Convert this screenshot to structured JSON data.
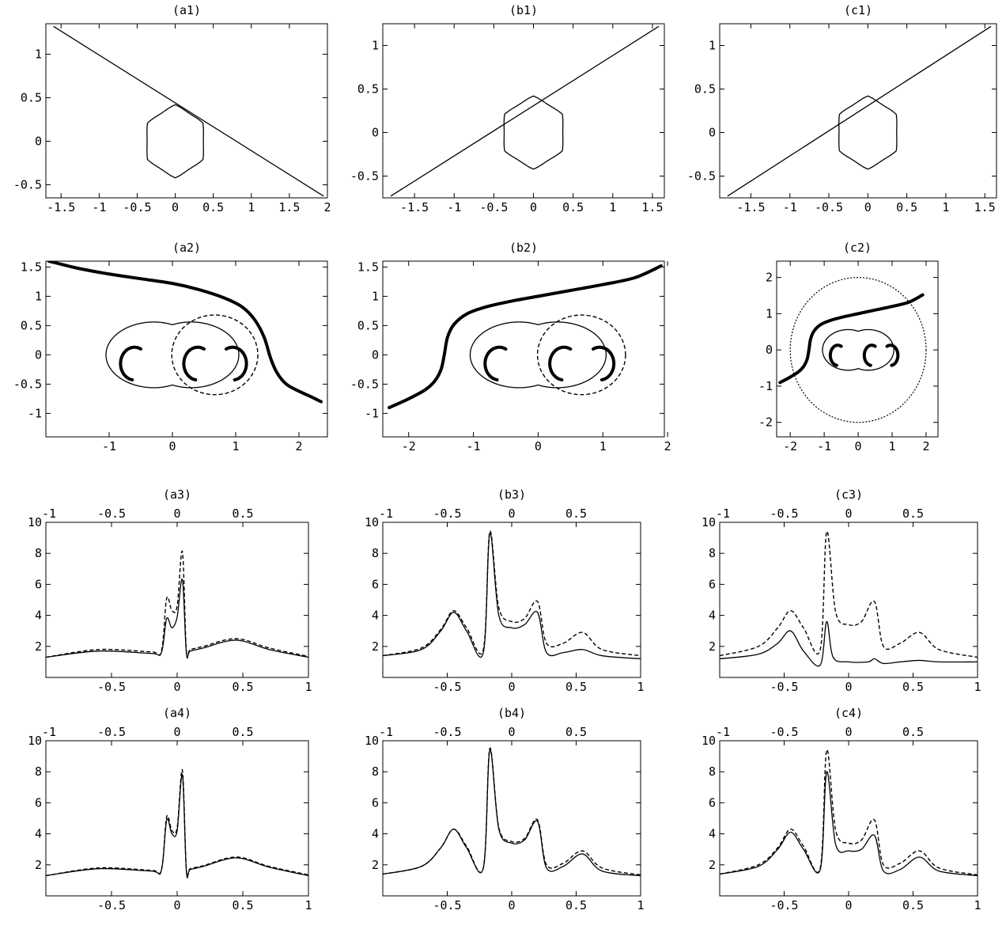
{
  "chart_data": [
    {
      "id": "a1",
      "title": "(a1)",
      "type": "line",
      "xlim": [
        -1.7,
        2.0
      ],
      "ylim": [
        -0.65,
        1.35
      ],
      "xticks": [
        "-1.5",
        "-1",
        "-0.5",
        "0",
        "0.5",
        "1",
        "1.5",
        "2"
      ],
      "yticks": [
        "-0.5",
        "0",
        "0.5",
        "1"
      ],
      "caustic": {
        "center": [
          0.0,
          0.0
        ],
        "radius": 0.42,
        "cusps": 6
      },
      "source_line": {
        "x": [
          -1.6,
          1.95
        ],
        "y": [
          1.32,
          -0.63
        ]
      }
    },
    {
      "id": "b1",
      "title": "(b1)",
      "type": "line",
      "xlim": [
        -1.9,
        1.65
      ],
      "ylim": [
        -0.75,
        1.25
      ],
      "xticks": [
        "-1.5",
        "-1",
        "-0.5",
        "0",
        "0.5",
        "1",
        "1.5"
      ],
      "yticks": [
        "-0.5",
        "0",
        "0.5",
        "1"
      ],
      "caustic": {
        "center": [
          0.0,
          0.0
        ],
        "radius": 0.42,
        "cusps": 6
      },
      "source_line": {
        "x": [
          -1.8,
          1.58
        ],
        "y": [
          -0.73,
          1.22
        ]
      }
    },
    {
      "id": "c1",
      "title": "(c1)",
      "type": "line",
      "xlim": [
        -1.9,
        1.65
      ],
      "ylim": [
        -0.75,
        1.25
      ],
      "xticks": [
        "-1.5",
        "-1",
        "-0.5",
        "0",
        "0.5",
        "1",
        "1.5"
      ],
      "yticks": [
        "-0.5",
        "0",
        "0.5",
        "1"
      ],
      "caustic": {
        "center": [
          0.0,
          0.0
        ],
        "radius": 0.42,
        "cusps": 6
      },
      "source_line": {
        "x": [
          -1.8,
          1.58
        ],
        "y": [
          -0.73,
          1.22
        ]
      }
    },
    {
      "id": "a2",
      "title": "(a2)",
      "type": "scatter",
      "xlim": [
        -2.0,
        2.45
      ],
      "ylim": [
        -1.4,
        1.6
      ],
      "xticks": [
        "-1",
        "0",
        "1",
        "2"
      ],
      "yticks": [
        "-1",
        "-0.5",
        "0",
        "0.5",
        "1",
        "1.5"
      ],
      "critical_center_x": 0.0,
      "dashed_circle": {
        "center": [
          0.67,
          0.0
        ],
        "r": 0.68
      },
      "image_track": {
        "x": [
          -1.95,
          -1.5,
          -1.0,
          -0.5,
          0.0,
          0.4,
          0.8,
          1.1,
          1.3,
          1.45,
          1.55,
          1.65,
          1.8,
          2.0,
          2.2,
          2.35
        ],
        "y": [
          1.6,
          1.48,
          1.38,
          1.3,
          1.22,
          1.12,
          0.98,
          0.82,
          0.6,
          0.3,
          -0.05,
          -0.3,
          -0.5,
          -0.62,
          -0.72,
          -0.8
        ]
      }
    },
    {
      "id": "b2",
      "title": "(b2)",
      "type": "scatter",
      "xlim": [
        -2.4,
        1.95
      ],
      "ylim": [
        -1.4,
        1.6
      ],
      "xticks": [
        "-2",
        "-1",
        "0",
        "1",
        "2"
      ],
      "yticks": [
        "-1",
        "-0.5",
        "0",
        "0.5",
        "1",
        "1.5"
      ],
      "critical_center_x": 0.0,
      "dashed_circle": {
        "center": [
          0.67,
          0.0
        ],
        "r": 0.68
      },
      "image_track": {
        "x": [
          -2.3,
          -2.0,
          -1.75,
          -1.6,
          -1.5,
          -1.45,
          -1.4,
          -1.3,
          -1.1,
          -0.8,
          -0.4,
          0.0,
          0.5,
          1.0,
          1.5,
          1.9
        ],
        "y": [
          -0.9,
          -0.75,
          -0.6,
          -0.45,
          -0.25,
          0.0,
          0.3,
          0.52,
          0.7,
          0.82,
          0.92,
          1.0,
          1.1,
          1.2,
          1.32,
          1.52
        ]
      }
    },
    {
      "id": "c2",
      "title": "(c2)",
      "type": "scatter",
      "xlim": [
        -2.4,
        2.35
      ],
      "ylim": [
        -2.4,
        2.45
      ],
      "xticks": [
        "-2",
        "-1",
        "0",
        "1",
        "2"
      ],
      "yticks": [
        "-2",
        "-1",
        "0",
        "1",
        "2"
      ],
      "critical_center_x": 0.0,
      "dashed_circle": {
        "center": [
          0.0,
          0.0
        ],
        "r": 2.0
      },
      "image_track": {
        "x": [
          -2.3,
          -2.0,
          -1.75,
          -1.6,
          -1.5,
          -1.45,
          -1.4,
          -1.3,
          -1.1,
          -0.8,
          -0.4,
          0.0,
          0.5,
          1.0,
          1.5,
          1.9
        ],
        "y": [
          -0.9,
          -0.75,
          -0.6,
          -0.45,
          -0.25,
          0.0,
          0.3,
          0.52,
          0.7,
          0.82,
          0.92,
          1.0,
          1.1,
          1.2,
          1.32,
          1.52
        ]
      }
    },
    {
      "id": "a3",
      "title": "(a3)",
      "type": "line",
      "xlim": [
        -1,
        1
      ],
      "ylim": [
        0,
        10
      ],
      "xticks": [
        "-0.5",
        "0",
        "0.5",
        "1"
      ],
      "xticks_top": [
        "-1",
        "-0.5",
        "0",
        "0.5"
      ],
      "yticks": [
        "2",
        "4",
        "6",
        "8",
        "10"
      ],
      "series": [
        {
          "style": "solid",
          "x": [
            -1,
            -0.6,
            -0.2,
            -0.12,
            -0.08,
            -0.04,
            0.0,
            0.04,
            0.07,
            0.1,
            0.2,
            0.45,
            0.7,
            1.0
          ],
          "y": [
            1.3,
            1.7,
            1.55,
            1.6,
            3.8,
            3.2,
            3.9,
            6.3,
            1.6,
            1.7,
            1.9,
            2.4,
            1.8,
            1.3
          ]
        },
        {
          "style": "dashed",
          "x": [
            -1,
            -0.6,
            -0.2,
            -0.12,
            -0.08,
            -0.04,
            0.0,
            0.04,
            0.07,
            0.1,
            0.2,
            0.45,
            0.7,
            1.0
          ],
          "y": [
            1.3,
            1.8,
            1.65,
            1.7,
            5.1,
            4.3,
            4.6,
            8.1,
            1.7,
            1.8,
            2.0,
            2.5,
            1.9,
            1.35
          ]
        }
      ]
    },
    {
      "id": "b3",
      "title": "(b3)",
      "type": "line",
      "xlim": [
        -1,
        1
      ],
      "ylim": [
        0,
        10
      ],
      "xticks": [
        "-0.5",
        "0",
        "0.5",
        "1"
      ],
      "xticks_top": [
        "-1",
        "-0.5",
        "0",
        "0.5"
      ],
      "yticks": [
        "2",
        "4",
        "6",
        "8",
        "10"
      ],
      "series": [
        {
          "style": "solid",
          "x": [
            -1,
            -0.7,
            -0.55,
            -0.45,
            -0.35,
            -0.22,
            -0.17,
            -0.1,
            0.0,
            0.1,
            0.2,
            0.27,
            0.4,
            0.55,
            0.7,
            1.0
          ],
          "y": [
            1.4,
            1.8,
            3.0,
            4.2,
            3.0,
            1.6,
            9.3,
            4.0,
            3.2,
            3.4,
            4.2,
            1.6,
            1.6,
            1.8,
            1.4,
            1.2
          ]
        },
        {
          "style": "dashed",
          "x": [
            -1,
            -0.7,
            -0.55,
            -0.45,
            -0.35,
            -0.22,
            -0.17,
            -0.1,
            0.0,
            0.1,
            0.2,
            0.27,
            0.4,
            0.55,
            0.7,
            1.0
          ],
          "y": [
            1.4,
            1.9,
            3.1,
            4.3,
            3.2,
            1.8,
            9.4,
            4.5,
            3.6,
            3.8,
            4.9,
            2.2,
            2.2,
            2.9,
            1.8,
            1.4
          ]
        }
      ]
    },
    {
      "id": "c3",
      "title": "(c3)",
      "type": "line",
      "xlim": [
        -1,
        1
      ],
      "ylim": [
        0,
        10
      ],
      "xticks": [
        "-0.5",
        "0",
        "0.5",
        "1"
      ],
      "xticks_top": [
        "-1",
        "-0.5",
        "0",
        "0.5"
      ],
      "yticks": [
        "2",
        "4",
        "6",
        "8",
        "10"
      ],
      "series": [
        {
          "style": "solid",
          "x": [
            -1,
            -0.7,
            -0.55,
            -0.45,
            -0.35,
            -0.22,
            -0.17,
            -0.12,
            0.0,
            0.15,
            0.2,
            0.27,
            0.4,
            0.55,
            0.7,
            1.0
          ],
          "y": [
            1.2,
            1.5,
            2.2,
            3.0,
            1.7,
            0.8,
            3.6,
            1.3,
            1.0,
            1.0,
            1.2,
            0.9,
            1.0,
            1.1,
            1.0,
            1.0
          ]
        },
        {
          "style": "dashed",
          "x": [
            -1,
            -0.7,
            -0.55,
            -0.45,
            -0.35,
            -0.22,
            -0.17,
            -0.1,
            0.0,
            0.1,
            0.2,
            0.27,
            0.4,
            0.55,
            0.7,
            1.0
          ],
          "y": [
            1.4,
            2.0,
            3.2,
            4.3,
            3.2,
            1.8,
            9.4,
            4.2,
            3.4,
            3.6,
            4.9,
            2.0,
            2.2,
            2.9,
            1.8,
            1.3
          ]
        }
      ]
    },
    {
      "id": "a4",
      "title": "(a4)",
      "type": "line",
      "xlim": [
        -1,
        1
      ],
      "ylim": [
        0,
        10
      ],
      "xticks": [
        "-0.5",
        "0",
        "0.5",
        "1"
      ],
      "xticks_top": [
        "-1",
        "-0.5",
        "0",
        "0.5"
      ],
      "yticks": [
        "2",
        "4",
        "6",
        "8",
        "10"
      ],
      "series": [
        {
          "style": "solid",
          "x": [
            -1,
            -0.6,
            -0.2,
            -0.12,
            -0.08,
            -0.04,
            0.0,
            0.04,
            0.07,
            0.1,
            0.2,
            0.45,
            0.7,
            1.0
          ],
          "y": [
            1.3,
            1.75,
            1.6,
            1.65,
            4.9,
            4.0,
            4.2,
            7.8,
            1.6,
            1.7,
            1.9,
            2.45,
            1.85,
            1.3
          ]
        },
        {
          "style": "dashed",
          "x": [
            -1,
            -0.6,
            -0.2,
            -0.12,
            -0.08,
            -0.04,
            0.0,
            0.04,
            0.07,
            0.1,
            0.2,
            0.45,
            0.7,
            1.0
          ],
          "y": [
            1.3,
            1.8,
            1.65,
            1.7,
            5.1,
            4.2,
            4.4,
            8.1,
            1.7,
            1.75,
            1.95,
            2.5,
            1.9,
            1.35
          ]
        }
      ]
    },
    {
      "id": "b4",
      "title": "(b4)",
      "type": "line",
      "xlim": [
        -1,
        1
      ],
      "ylim": [
        0,
        10
      ],
      "xticks": [
        "-0.5",
        "0",
        "0.5",
        "1"
      ],
      "xticks_top": [
        "-1",
        "-0.5",
        "0",
        "0.5"
      ],
      "yticks": [
        "2",
        "4",
        "6",
        "8",
        "10"
      ],
      "series": [
        {
          "style": "solid",
          "x": [
            -1,
            -0.7,
            -0.55,
            -0.45,
            -0.35,
            -0.22,
            -0.17,
            -0.1,
            0.0,
            0.1,
            0.2,
            0.27,
            0.4,
            0.55,
            0.7,
            1.0
          ],
          "y": [
            1.4,
            1.9,
            3.1,
            4.3,
            3.1,
            1.8,
            9.4,
            4.3,
            3.4,
            3.6,
            4.8,
            1.8,
            1.9,
            2.7,
            1.6,
            1.3
          ]
        },
        {
          "style": "dashed",
          "x": [
            -1,
            -0.7,
            -0.55,
            -0.45,
            -0.35,
            -0.22,
            -0.17,
            -0.1,
            0.0,
            0.1,
            0.2,
            0.27,
            0.4,
            0.55,
            0.7,
            1.0
          ],
          "y": [
            1.4,
            1.9,
            3.1,
            4.3,
            3.2,
            1.8,
            9.5,
            4.4,
            3.5,
            3.7,
            4.9,
            2.0,
            2.1,
            2.9,
            1.8,
            1.35
          ]
        }
      ]
    },
    {
      "id": "c4",
      "title": "(c4)",
      "type": "line",
      "xlim": [
        -1,
        1
      ],
      "ylim": [
        0,
        10
      ],
      "xticks": [
        "-0.5",
        "0",
        "0.5",
        "1"
      ],
      "xticks_top": [
        "-1",
        "-0.5",
        "0",
        "0.5"
      ],
      "yticks": [
        "2",
        "4",
        "6",
        "8",
        "10"
      ],
      "series": [
        {
          "style": "solid",
          "x": [
            -1,
            -0.7,
            -0.55,
            -0.45,
            -0.35,
            -0.22,
            -0.17,
            -0.1,
            0.0,
            0.1,
            0.2,
            0.27,
            0.4,
            0.55,
            0.7,
            1.0
          ],
          "y": [
            1.4,
            1.9,
            3.0,
            4.1,
            3.0,
            1.7,
            8.0,
            3.3,
            2.9,
            3.0,
            3.9,
            1.6,
            1.7,
            2.5,
            1.6,
            1.3
          ]
        },
        {
          "style": "dashed",
          "x": [
            -1,
            -0.7,
            -0.55,
            -0.45,
            -0.35,
            -0.22,
            -0.17,
            -0.1,
            0.0,
            0.1,
            0.2,
            0.27,
            0.4,
            0.55,
            0.7,
            1.0
          ],
          "y": [
            1.4,
            2.0,
            3.1,
            4.3,
            3.2,
            1.8,
            9.4,
            4.2,
            3.4,
            3.6,
            4.9,
            2.0,
            2.1,
            2.9,
            1.8,
            1.35
          ]
        }
      ]
    }
  ]
}
